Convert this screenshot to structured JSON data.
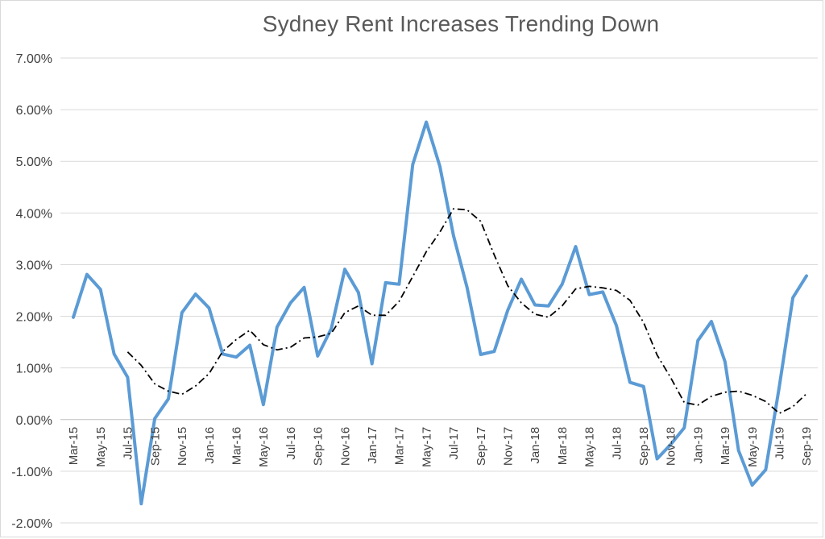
{
  "chart_data": {
    "type": "line",
    "title": "Sydney Rent Increases Trending Down",
    "xlabel": "",
    "ylabel": "",
    "ylim": [
      -0.02,
      0.07
    ],
    "y_ticks": [
      "-2.00%",
      "-1.00%",
      "0.00%",
      "1.00%",
      "2.00%",
      "3.00%",
      "4.00%",
      "5.00%",
      "6.00%",
      "7.00%"
    ],
    "x_tick_labels": [
      "Mar-15",
      "May-15",
      "Jul-15",
      "Sep-15",
      "Nov-15",
      "Jan-16",
      "Mar-16",
      "May-16",
      "Jul-16",
      "Sep-16",
      "Nov-16",
      "Jan-17",
      "Mar-17",
      "May-17",
      "Jul-17",
      "Sep-17",
      "Nov-17",
      "Jan-18",
      "Mar-18",
      "May-18",
      "Jul-18",
      "Sep-18",
      "Nov-18",
      "Jan-19",
      "Mar-19",
      "May-19",
      "Jul-19",
      "Sep-19"
    ],
    "x": [
      "Mar-15",
      "Apr-15",
      "May-15",
      "Jun-15",
      "Jul-15",
      "Aug-15",
      "Sep-15",
      "Oct-15",
      "Nov-15",
      "Dec-15",
      "Jan-16",
      "Feb-16",
      "Mar-16",
      "Apr-16",
      "May-16",
      "Jun-16",
      "Jul-16",
      "Aug-16",
      "Sep-16",
      "Oct-16",
      "Nov-16",
      "Dec-16",
      "Jan-17",
      "Feb-17",
      "Mar-17",
      "Apr-17",
      "May-17",
      "Jun-17",
      "Jul-17",
      "Aug-17",
      "Sep-17",
      "Oct-17",
      "Nov-17",
      "Dec-17",
      "Jan-18",
      "Feb-18",
      "Mar-18",
      "Apr-18",
      "May-18",
      "Jun-18",
      "Jul-18",
      "Aug-18",
      "Sep-18",
      "Oct-18",
      "Nov-18",
      "Dec-18",
      "Jan-19",
      "Feb-19",
      "Mar-19",
      "Apr-19",
      "May-19",
      "Jun-19",
      "Jul-19",
      "Aug-19",
      "Sep-19"
    ],
    "series": [
      {
        "color": "#5b9bd5",
        "style": "solid",
        "values": [
          0.0198,
          0.0281,
          0.0252,
          0.0127,
          0.0082,
          -0.0163,
          0.0002,
          0.004,
          0.0207,
          0.0243,
          0.0216,
          0.0127,
          0.0121,
          0.0144,
          0.0029,
          0.0179,
          0.0226,
          0.0256,
          0.0123,
          0.0176,
          0.0291,
          0.0246,
          0.0108,
          0.0265,
          0.0262,
          0.0494,
          0.0576,
          0.049,
          0.0356,
          0.0256,
          0.0126,
          0.0132,
          0.0212,
          0.0272,
          0.0222,
          0.022,
          0.0262,
          0.0335,
          0.0242,
          0.0247,
          0.0182,
          0.0072,
          0.0064,
          -0.0076,
          -0.0048,
          -0.0016,
          0.0153,
          0.019,
          0.0112,
          -0.006,
          -0.0127,
          -0.0097,
          0.0064,
          0.0236,
          0.0278
        ]
      },
      {
        "color": "#000000",
        "style": "dash-dot",
        "values": [
          null,
          null,
          null,
          null,
          0.0131,
          0.0105,
          0.0069,
          0.0055,
          0.0049,
          0.0065,
          0.0089,
          0.0132,
          0.0155,
          0.0173,
          0.0145,
          0.0135,
          0.014,
          0.0158,
          0.016,
          0.0167,
          0.0207,
          0.022,
          0.0202,
          0.0202,
          0.0229,
          0.0277,
          0.0325,
          0.0363,
          0.0408,
          0.0406,
          0.0384,
          0.0319,
          0.0259,
          0.0226,
          0.0204,
          0.0198,
          0.022,
          0.0253,
          0.0258,
          0.0255,
          0.025,
          0.0231,
          0.0188,
          0.0125,
          0.0081,
          0.0033,
          0.0028,
          0.0045,
          0.0053,
          0.0055,
          0.0047,
          0.0035,
          0.0012,
          0.0025,
          0.005
        ]
      }
    ],
    "grid": true,
    "legend": "none"
  }
}
